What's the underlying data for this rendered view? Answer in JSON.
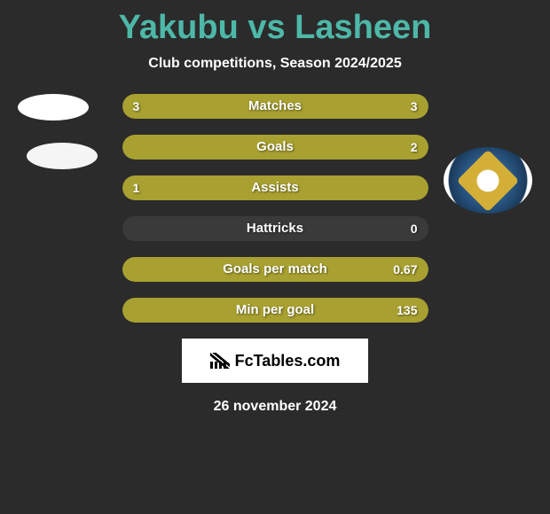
{
  "title": "Yakubu vs Lasheen",
  "subtitle": "Club competitions, Season 2024/2025",
  "date": "26 november 2024",
  "fctables_label": "FcTables.com",
  "colors": {
    "background": "#2b2b2b",
    "title_color": "#4db8a8",
    "text_color": "#ffffff",
    "bar_fill": "#a8a030",
    "bar_empty": "#3a3a3a",
    "badge_white": "#ffffff"
  },
  "stats": [
    {
      "label": "Matches",
      "left_value": "3",
      "right_value": "3",
      "left_pct": 50,
      "right_pct": 50,
      "show_left": true,
      "show_right": true
    },
    {
      "label": "Goals",
      "left_value": "",
      "right_value": "2",
      "left_pct": 0,
      "right_pct": 100,
      "show_left": false,
      "show_right": true
    },
    {
      "label": "Assists",
      "left_value": "1",
      "right_value": "",
      "left_pct": 100,
      "right_pct": 0,
      "show_left": true,
      "show_right": false
    },
    {
      "label": "Hattricks",
      "left_value": "",
      "right_value": "0",
      "left_pct": 0,
      "right_pct": 0,
      "show_left": false,
      "show_right": true
    },
    {
      "label": "Goals per match",
      "left_value": "",
      "right_value": "0.67",
      "left_pct": 0,
      "right_pct": 100,
      "show_left": false,
      "show_right": true
    },
    {
      "label": "Min per goal",
      "left_value": "",
      "right_value": "135",
      "left_pct": 0,
      "right_pct": 100,
      "show_left": false,
      "show_right": true
    }
  ]
}
